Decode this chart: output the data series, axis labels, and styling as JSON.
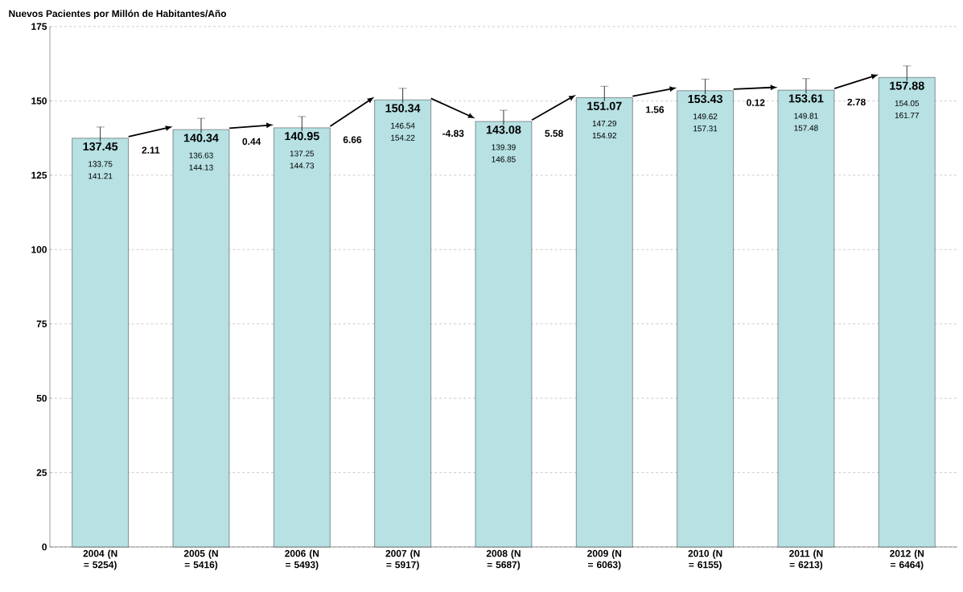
{
  "chart_data": {
    "type": "bar",
    "title": "Nuevos Pacientes por Millón de Habitantes/Año",
    "categories": [
      "2004 (N = 5254)",
      "2005 (N = 5416)",
      "2006 (N = 5493)",
      "2007 (N = 5917)",
      "2008 (N = 5687)",
      "2009 (N = 6063)",
      "2010 (N = 6155)",
      "2011 (N = 6213)",
      "2012 (N = 6464)"
    ],
    "values": [
      137.45,
      140.34,
      140.95,
      150.34,
      143.08,
      151.07,
      153.43,
      153.61,
      157.88
    ],
    "errors": [
      [
        133.75,
        141.21
      ],
      [
        136.63,
        144.13
      ],
      [
        137.25,
        144.73
      ],
      [
        146.54,
        154.22
      ],
      [
        139.39,
        146.85
      ],
      [
        147.29,
        154.92
      ],
      [
        149.62,
        157.31
      ],
      [
        149.81,
        157.48
      ],
      [
        154.05,
        161.77
      ]
    ],
    "color": "#b7e1e3",
    "data_labels": true,
    "grid": "y",
    "ylim": [
      0,
      175
    ],
    "yticks": [
      0,
      25,
      50,
      75,
      100,
      125,
      150,
      175
    ],
    "annotations": [
      "133.75",
      "141.21",
      "136.63",
      "144.13",
      "137.25",
      "144.73",
      "146.54",
      "154.22",
      "139.39",
      "146.85",
      "147.29",
      "154.92",
      "149.62",
      "157.31",
      "149.81",
      "157.48",
      "154.05",
      "161.77",
      "2.11",
      "0.44",
      "6.66",
      "-4.83",
      "5.58",
      "1.56",
      "0.12",
      "2.78"
    ]
  }
}
